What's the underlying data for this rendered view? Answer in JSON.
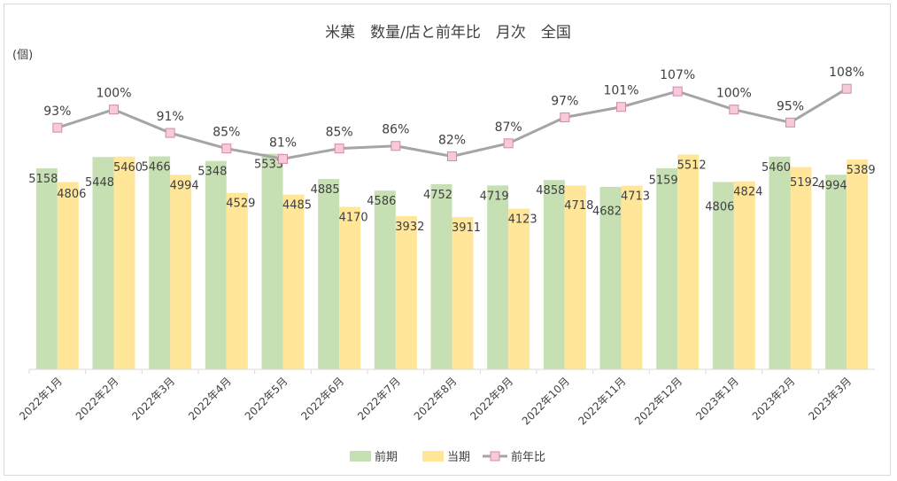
{
  "chart_data": {
    "type": "bar",
    "title": "米菓　数量/店と前年比　月次　全国",
    "ylabel": "(個)",
    "ylim": [
      0,
      8000
    ],
    "y2lim": [
      0,
      120
    ],
    "categories": [
      "2022年1月",
      "2022年2月",
      "2022年3月",
      "2022年4月",
      "2022年5月",
      "2022年6月",
      "2022年7月",
      "2022年8月",
      "2022年9月",
      "2022年10月",
      "2022年11月",
      "2022年12月",
      "2023年1月",
      "2023年2月",
      "2023年3月"
    ],
    "series": [
      {
        "name": "前期",
        "type": "bar",
        "color": "#c6e0b4",
        "values": [
          5158,
          5448,
          5466,
          5348,
          5533,
          4885,
          4586,
          4752,
          4719,
          4858,
          4682,
          5159,
          4806,
          5460,
          4994
        ]
      },
      {
        "name": "当期",
        "type": "bar",
        "color": "#ffe699",
        "values": [
          4806,
          5460,
          4994,
          4529,
          4485,
          4170,
          3932,
          3911,
          4123,
          4718,
          4713,
          5512,
          4824,
          5192,
          5389
        ]
      },
      {
        "name": "前年比",
        "type": "line",
        "axis": "secondary",
        "color": "#a5a5a5",
        "marker_color": "#f8c8dc",
        "values": [
          93,
          100,
          91,
          85,
          81,
          85,
          86,
          82,
          87,
          97,
          101,
          107,
          100,
          95,
          108
        ],
        "labels": [
          "93%",
          "100%",
          "91%",
          "85%",
          "81%",
          "85%",
          "86%",
          "82%",
          "87%",
          "97%",
          "101%",
          "107%",
          "100%",
          "95%",
          "108%"
        ]
      }
    ],
    "legend": "bottom",
    "grid": false
  }
}
